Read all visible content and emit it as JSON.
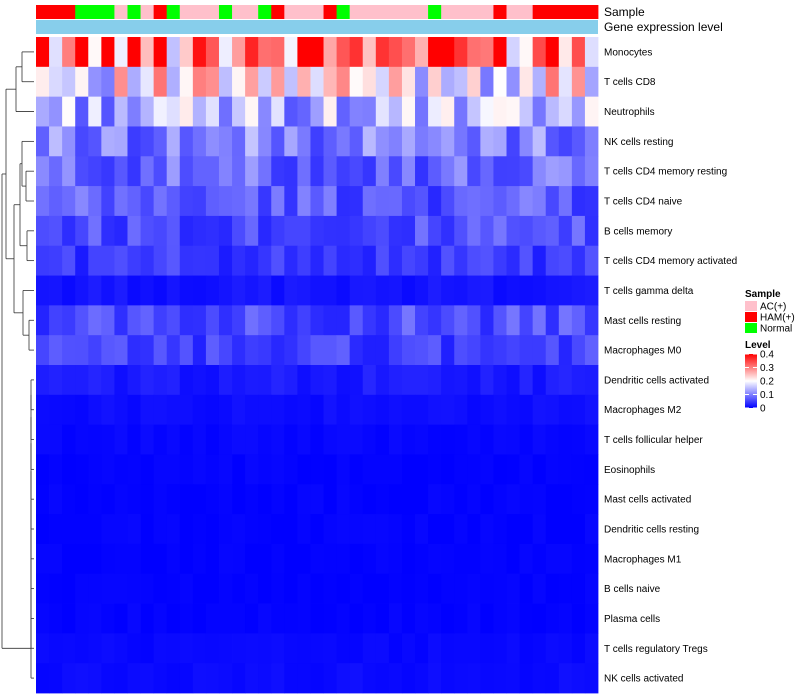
{
  "chart_data": {
    "type": "heatmap",
    "title": "",
    "annotation_tracks": [
      "Sample",
      "Gene expression level"
    ],
    "rows": [
      "Monocytes",
      "T cells CD8",
      "Neutrophils",
      "NK cells resting",
      "T cells CD4 memory resting",
      "T cells CD4 naive",
      "B cells memory",
      "T cells CD4 memory activated",
      "T cells gamma delta",
      "Mast cells resting",
      "Macrophages M0",
      "Dendritic cells activated",
      "Macrophages M2",
      "T cells follicular helper",
      "Eosinophils",
      "Mast cells activated",
      "Dendritic cells resting",
      "Macrophages M1",
      "B cells naive",
      "Plasma cells",
      "T cells regulatory  Tregs",
      "NK cells activated"
    ],
    "sample_groups": [
      "HAM(+)",
      "HAM(+)",
      "HAM(+)",
      "Normal",
      "Normal",
      "Normal",
      "AC(+)",
      "Normal",
      "AC(+)",
      "HAM(+)",
      "Normal",
      "AC(+)",
      "AC(+)",
      "AC(+)",
      "Normal",
      "AC(+)",
      "AC(+)",
      "Normal",
      "HAM(+)",
      "AC(+)",
      "AC(+)",
      "AC(+)",
      "HAM(+)",
      "Normal",
      "AC(+)",
      "AC(+)",
      "AC(+)",
      "AC(+)",
      "AC(+)",
      "AC(+)",
      "Normal",
      "AC(+)",
      "AC(+)",
      "AC(+)",
      "AC(+)",
      "HAM(+)",
      "AC(+)",
      "AC(+)",
      "HAM(+)",
      "HAM(+)",
      "HAM(+)",
      "HAM(+)",
      "HAM(+)"
    ],
    "row_base_values": [
      0.33,
      0.2,
      0.14,
      0.1,
      0.08,
      0.07,
      0.06,
      0.045,
      0.015,
      0.06,
      0.05,
      0.02,
      0.01,
      0.005,
      0.002,
      0.002,
      0.002,
      0.001,
      0.001,
      0.002,
      0.006,
      0.008
    ],
    "color_scale": {
      "min": 0,
      "mid": 0.2,
      "max": 0.4,
      "low": "#0000ff",
      "middle": "#ffffff",
      "high": "#ff0000"
    },
    "legend": {
      "sample_title": "Sample",
      "sample_items": [
        {
          "label": "AC(+)",
          "color": "#ffc0cb"
        },
        {
          "label": "HAM(+)",
          "color": "#ff0000"
        },
        {
          "label": "Normal",
          "color": "#00ff00"
        }
      ],
      "level_title": "Level",
      "level_ticks": [
        "0.4",
        "0.3",
        "0.2",
        "0.1",
        "0"
      ],
      "level_tick_values": [
        0.4,
        0.3,
        0.2,
        0.1,
        0
      ],
      "position": "right"
    },
    "gene_expression_color": "#87ceeb"
  }
}
